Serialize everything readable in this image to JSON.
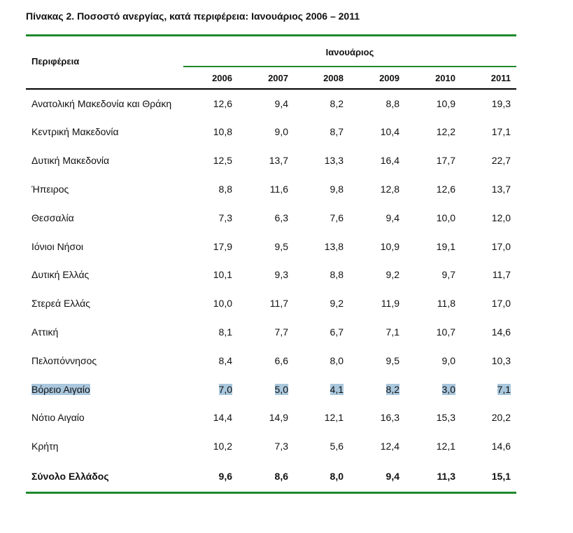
{
  "title": "Πίνακας 2. Ποσοστό ανεργίας, κατά περιφέρεια: Ιανουάριος 2006 – 2011",
  "header": {
    "region_label": "Περιφέρεια",
    "group_label": "Ιανουάριος",
    "years": [
      "2006",
      "2007",
      "2008",
      "2009",
      "2010",
      "2011"
    ]
  },
  "rows": [
    {
      "name": "Ανατολική Μακεδονία και Θράκη",
      "values": [
        "12,6",
        "9,4",
        "8,2",
        "8,8",
        "10,9",
        "19,3"
      ]
    },
    {
      "name": "Κεντρική Μακεδονία",
      "values": [
        "10,8",
        "9,0",
        "8,7",
        "10,4",
        "12,2",
        "17,1"
      ]
    },
    {
      "name": "Δυτική Μακεδονία",
      "values": [
        "12,5",
        "13,7",
        "13,3",
        "16,4",
        "17,7",
        "22,7"
      ]
    },
    {
      "name": "Ήπειρος",
      "values": [
        "8,8",
        "11,6",
        "9,8",
        "12,8",
        "12,6",
        "13,7"
      ]
    },
    {
      "name": "Θεσσαλία",
      "values": [
        "7,3",
        "6,3",
        "7,6",
        "9,4",
        "10,0",
        "12,0"
      ]
    },
    {
      "name": "Ιόνιοι Νήσοι",
      "values": [
        "17,9",
        "9,5",
        "13,8",
        "10,9",
        "19,1",
        "17,0"
      ]
    },
    {
      "name": "Δυτική Ελλάς",
      "values": [
        "10,1",
        "9,3",
        "8,8",
        "9,2",
        "9,7",
        "11,7"
      ]
    },
    {
      "name": "Στερεά Ελλάς",
      "values": [
        "10,0",
        "11,7",
        "9,2",
        "11,9",
        "11,8",
        "17,0"
      ]
    },
    {
      "name": "Αττική",
      "values": [
        "8,1",
        "7,7",
        "6,7",
        "7,1",
        "10,7",
        "14,6"
      ]
    },
    {
      "name": "Πελοπόννησος",
      "values": [
        "8,4",
        "6,6",
        "8,0",
        "9,5",
        "9,0",
        "10,3"
      ]
    },
    {
      "name": "Βόρειο Αιγαίο",
      "values": [
        "7,0",
        "5,0",
        "4,1",
        "8,2",
        "3,0",
        "7,1"
      ]
    },
    {
      "name": "Νότιο Αιγαίο",
      "values": [
        "14,4",
        "14,9",
        "12,1",
        "16,3",
        "15,3",
        "20,2"
      ]
    },
    {
      "name": "Κρήτη",
      "values": [
        "10,2",
        "7,3",
        "5,6",
        "12,4",
        "12,1",
        "14,6"
      ]
    }
  ],
  "total": {
    "name": "Σύνολο Ελλάδος",
    "values": [
      "9,6",
      "8,6",
      "8,0",
      "9,4",
      "11,3",
      "15,1"
    ]
  }
}
